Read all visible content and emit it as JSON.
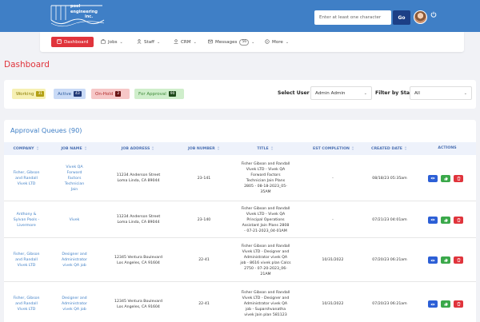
{
  "header": {
    "logo_text": [
      "pool",
      "engineering",
      "inc."
    ],
    "search_placeholder": "Enter at least one character",
    "go_label": "Go",
    "icons": {
      "power": "power-icon",
      "avatar": "user-avatar"
    }
  },
  "nav": {
    "items": [
      {
        "label": "Dashboard",
        "icon": "dashboard-icon",
        "active": true
      },
      {
        "label": "Jobs",
        "icon": "briefcase-icon"
      },
      {
        "label": "Staff",
        "icon": "staff-icon"
      },
      {
        "label": "CRM",
        "icon": "crm-icon"
      },
      {
        "label": "Messages",
        "icon": "messages-icon",
        "badge": "56"
      },
      {
        "label": "More",
        "icon": "more-icon"
      }
    ]
  },
  "page": {
    "title": "Dashboard"
  },
  "filters": {
    "pills": [
      {
        "label": "Working",
        "count": "31"
      },
      {
        "label": "Active",
        "count": "43"
      },
      {
        "label": "On-Hold",
        "count": "2"
      },
      {
        "label": "For Approval",
        "count": "90"
      }
    ],
    "select_user_label": "Select User",
    "select_user_value": "Admin Admin",
    "status_label": "Filter by Status",
    "status_value": "All"
  },
  "queue": {
    "title": "Approval Queues (90)",
    "columns": [
      "COMPANY",
      "JOB NAME",
      "JOB ADDRESS",
      "JOB NUMBER",
      "TITLE",
      "EST COMPLETION",
      "CREATED DATE",
      "ACTIONS"
    ],
    "rows": [
      {
        "company": [
          "Fisher, Gibson",
          "and Randall",
          "Vivek LTD"
        ],
        "job_name": [
          "Vivek QA",
          "Forward",
          "Factors",
          "Technician",
          "Jain"
        ],
        "address": [
          "11234 Anderson Street",
          "Loma Linda, CA 89044"
        ],
        "job_number": "23-141",
        "title": [
          "Fisher Gibson and Randall",
          "Vivek LTD - Vivek QA",
          "Forward Factors",
          "Technician Jain Plans",
          "2805 - 08-18-2023_05-",
          "35AM"
        ],
        "est_completion": "-",
        "created": "08/18/23 05:35am"
      },
      {
        "company": [
          "Anthony &",
          "Sylvan Pools -",
          "Livermore"
        ],
        "job_name": [
          "Vivek"
        ],
        "address": [
          "11234 Anderson Street",
          "Loma Linda, CA 89044"
        ],
        "job_number": "23-140",
        "title": [
          "Fisher Gibson and Randall",
          "Vivek LTD - Vivek QA",
          "Principal Operations",
          "Assistant Jain Plans 2808",
          "- 07-21-2023_04-01AM"
        ],
        "est_completion": "-",
        "created": "07/21/23 04:01am"
      },
      {
        "company": [
          "Fisher, Gibson",
          "and Randall",
          "Vivek LTD"
        ],
        "job_name": [
          "Designer and",
          "Administrator",
          "vivek QA job"
        ],
        "address": [
          "12345 Ventura Boulevard",
          "Los Angeles, CA 91604"
        ],
        "job_number": "22-41",
        "title": [
          "Fisher Gibson and Randall",
          "Vivek LTD - Designer and",
          "Administrator vivek QA",
          "job - 8616 vivek plan Calcs",
          "2750 - 07-20-2023_06-",
          "21AM"
        ],
        "est_completion": "10/31/2022",
        "created": "07/20/23 06:21am"
      },
      {
        "company": [
          "Fisher, Gibson",
          "and Randall",
          "Vivek LTD"
        ],
        "job_name": [
          "Designer and",
          "Administrator",
          "vivek QA job"
        ],
        "address": [
          "12345 Ventura Boulevard",
          "Los Angeles, CA 91604"
        ],
        "job_number": "22-41",
        "title": [
          "Fisher Gibson and Randall",
          "Vivek LTD - Designer and",
          "Administrator vivek QA",
          "job - Suparshvanatha",
          "vivek Jain plan 581123"
        ],
        "est_completion": "10/31/2022",
        "created": "07/20/23 06:21am"
      }
    ]
  },
  "colors": {
    "brand_blue": "#3f7fc6",
    "accent_red": "#e0343c",
    "approve_green": "#3aa84a",
    "view_blue": "#2c5fd6"
  }
}
